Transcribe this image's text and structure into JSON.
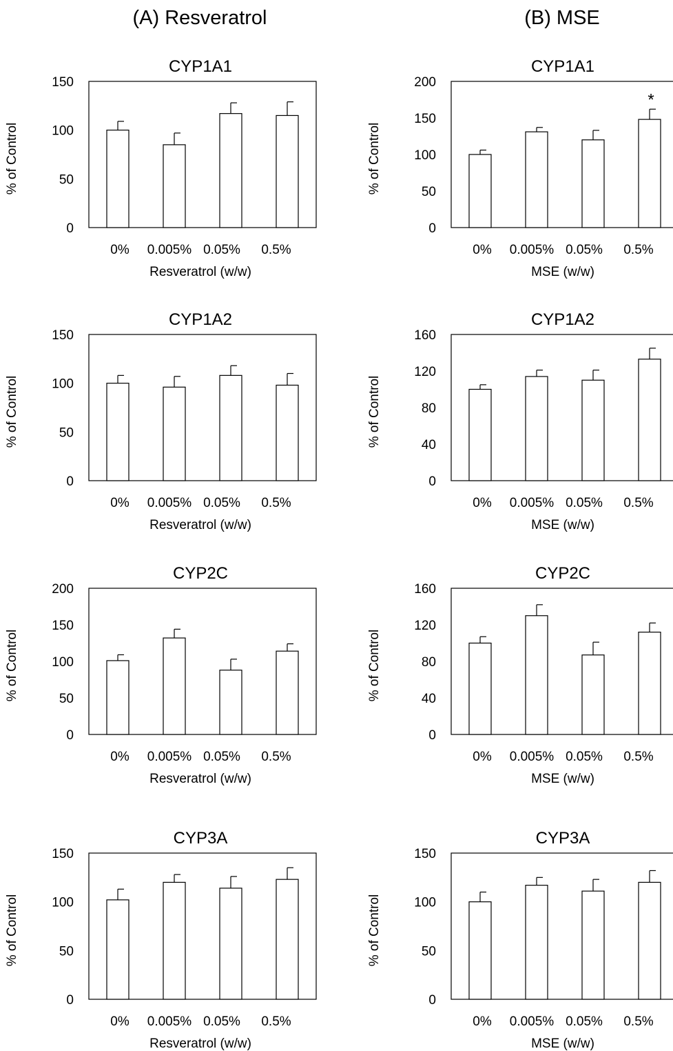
{
  "columns": [
    {
      "title": "(A) Resveratrol"
    },
    {
      "title": "(B) MSE"
    }
  ],
  "chart_data": [
    {
      "type": "bar",
      "title": "CYP1A1",
      "xlabel": "Resveratrol (w/w)",
      "ylabel": "% of Control",
      "categories": [
        "0%",
        "0.005%",
        "0.05%",
        "0.5%"
      ],
      "values": [
        100,
        85,
        117,
        115
      ],
      "errors": [
        9,
        12,
        11,
        14
      ],
      "ylim": [
        0,
        150
      ],
      "yticks": [
        0,
        50,
        100,
        150
      ],
      "annotations": [
        "",
        "",
        "",
        ""
      ]
    },
    {
      "type": "bar",
      "title": "CYP1A1",
      "xlabel": "MSE (w/w)",
      "ylabel": "% of Control",
      "categories": [
        "0%",
        "0.005%",
        "0.05%",
        "0.5%"
      ],
      "values": [
        100,
        131,
        120,
        148
      ],
      "errors": [
        6,
        6,
        13,
        14
      ],
      "ylim": [
        0,
        200
      ],
      "yticks": [
        0,
        50,
        100,
        150,
        200
      ],
      "annotations": [
        "",
        "",
        "",
        "*"
      ]
    },
    {
      "type": "bar",
      "title": "CYP1A2",
      "xlabel": "Resveratrol (w/w)",
      "ylabel": "% of Control",
      "categories": [
        "0%",
        "0.005%",
        "0.05%",
        "0.5%"
      ],
      "values": [
        100,
        96,
        108,
        98
      ],
      "errors": [
        8,
        11,
        10,
        12
      ],
      "ylim": [
        0,
        150
      ],
      "yticks": [
        0,
        50,
        100,
        150
      ],
      "annotations": [
        "",
        "",
        "",
        ""
      ]
    },
    {
      "type": "bar",
      "title": "CYP1A2",
      "xlabel": "MSE (w/w)",
      "ylabel": "% of Control",
      "categories": [
        "0%",
        "0.005%",
        "0.05%",
        "0.5%"
      ],
      "values": [
        100,
        114,
        110,
        133
      ],
      "errors": [
        5,
        7,
        11,
        12
      ],
      "ylim": [
        0,
        160
      ],
      "yticks": [
        0,
        40,
        80,
        120,
        160
      ],
      "annotations": [
        "",
        "",
        "",
        ""
      ]
    },
    {
      "type": "bar",
      "title": "CYP2C",
      "xlabel": "Resveratrol (w/w)",
      "ylabel": "% of Control",
      "categories": [
        "0%",
        "0.005%",
        "0.05%",
        "0.5%"
      ],
      "values": [
        101,
        132,
        88,
        114
      ],
      "errors": [
        8,
        12,
        15,
        10
      ],
      "ylim": [
        0,
        200
      ],
      "yticks": [
        0,
        50,
        100,
        150,
        200
      ],
      "annotations": [
        "",
        "",
        "",
        ""
      ]
    },
    {
      "type": "bar",
      "title": "CYP2C",
      "xlabel": "MSE (w/w)",
      "ylabel": "% of Control",
      "categories": [
        "0%",
        "0.005%",
        "0.05%",
        "0.5%"
      ],
      "values": [
        100,
        130,
        87,
        112
      ],
      "errors": [
        7,
        12,
        14,
        10
      ],
      "ylim": [
        0,
        160
      ],
      "yticks": [
        0,
        40,
        80,
        120,
        160
      ],
      "annotations": [
        "",
        "",
        "",
        ""
      ]
    },
    {
      "type": "bar",
      "title": "CYP3A",
      "xlabel": "Resveratrol (w/w)",
      "ylabel": "% of Control",
      "categories": [
        "0%",
        "0.005%",
        "0.05%",
        "0.5%"
      ],
      "values": [
        102,
        120,
        114,
        123
      ],
      "errors": [
        11,
        8,
        12,
        12
      ],
      "ylim": [
        0,
        150
      ],
      "yticks": [
        0,
        50,
        100,
        150
      ],
      "annotations": [
        "",
        "",
        "",
        ""
      ]
    },
    {
      "type": "bar",
      "title": "CYP3A",
      "xlabel": "MSE (w/w)",
      "ylabel": "% of Control",
      "categories": [
        "0%",
        "0.005%",
        "0.05%",
        "0.5%"
      ],
      "values": [
        100,
        117,
        111,
        120
      ],
      "errors": [
        10,
        8,
        12,
        12
      ],
      "ylim": [
        0,
        150
      ],
      "yticks": [
        0,
        50,
        100,
        150
      ],
      "annotations": [
        "",
        "",
        "",
        ""
      ]
    }
  ]
}
